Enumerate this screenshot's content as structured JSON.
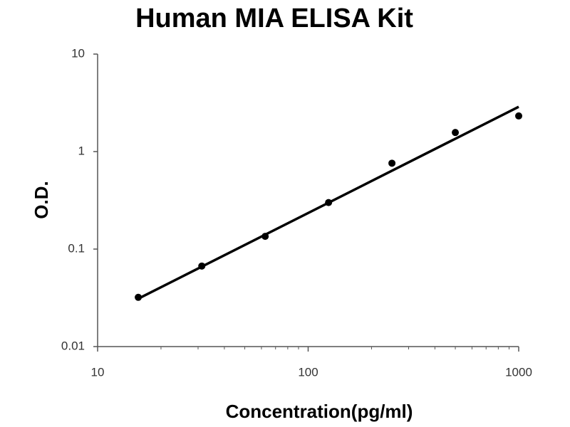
{
  "chart_data": {
    "type": "scatter",
    "title": "Human MIA ELISA Kit",
    "xlabel": "Concentration(pg/ml)",
    "ylabel": "O.D.",
    "xscale": "log",
    "yscale": "log",
    "xlim": [
      10,
      1000
    ],
    "ylim": [
      0.01,
      10
    ],
    "xticks": [
      10,
      100,
      1000
    ],
    "xminor": [
      20,
      30,
      40,
      50,
      60,
      70,
      80,
      90,
      200,
      300,
      400,
      500,
      600,
      700,
      800,
      900
    ],
    "yticks": [
      0.01,
      0.1,
      1,
      10
    ],
    "series": [
      {
        "color": "#000000",
        "x": [
          15.6,
          31.25,
          62.5,
          125,
          250,
          500,
          1000
        ],
        "values": [
          0.032,
          0.067,
          0.135,
          0.3,
          0.76,
          1.57,
          2.32
        ]
      },
      {
        "color": "#000000",
        "mode": "line",
        "x": [
          15.6,
          1000
        ],
        "values": [
          0.031,
          2.88
        ]
      }
    ]
  }
}
